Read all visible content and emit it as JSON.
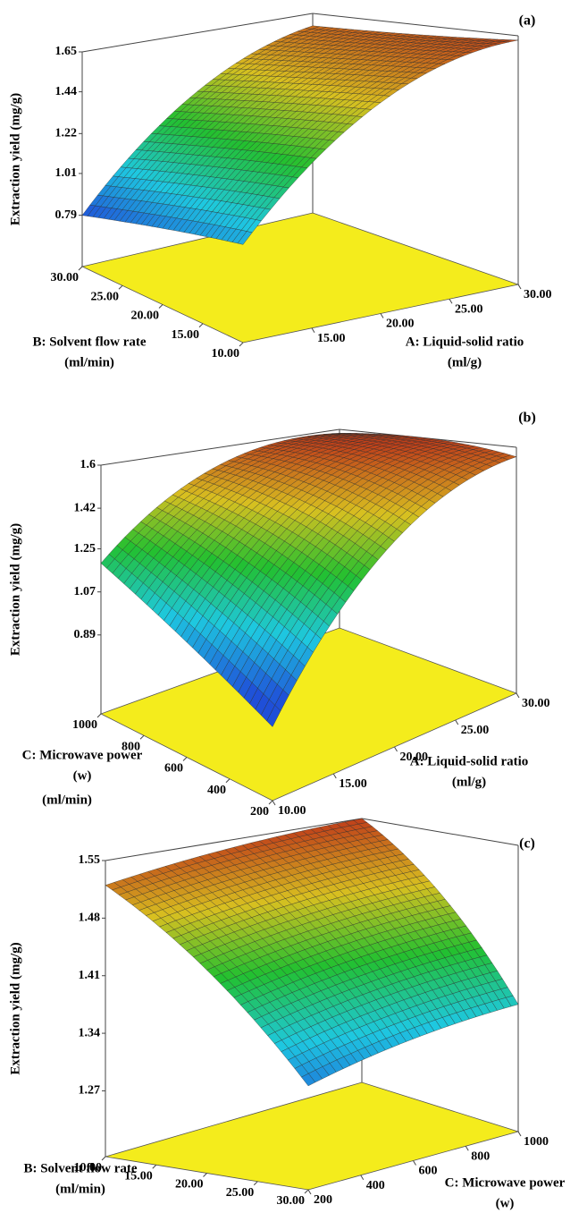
{
  "chart_data": [
    {
      "type": "surface",
      "label": "(a)",
      "zlabel": "Extraction yield (mg/g)",
      "zlim": [
        0.52,
        1.65
      ],
      "zticks": [
        0.79,
        1.01,
        1.22,
        1.44,
        1.65
      ],
      "xlabel": [
        "A: Liquid-solid ratio",
        "(ml/g)"
      ],
      "xlim": [
        10,
        30
      ],
      "xticks": [
        {
          "value": 15,
          "label": "15.00"
        },
        {
          "value": 20,
          "label": "20.00"
        },
        {
          "value": 25,
          "label": "25.00"
        },
        {
          "value": 30,
          "label": "30.00"
        }
      ],
      "ylabel": [
        "B: Solvent flow rate",
        "(ml/min)"
      ],
      "ylim": [
        10,
        30
      ],
      "yticks": [
        {
          "value": 30,
          "label": "30.00"
        },
        {
          "value": 25,
          "label": "25.00"
        },
        {
          "value": 20,
          "label": "20.00"
        },
        {
          "value": 15,
          "label": "15.00"
        },
        {
          "value": 10,
          "label": "10.00"
        }
      ],
      "x": [
        10,
        20,
        30
      ],
      "y": [
        10,
        20,
        30
      ],
      "z": [
        [
          0.94,
          1.45,
          1.63
        ],
        [
          0.88,
          1.4,
          1.6
        ],
        [
          0.79,
          1.33,
          1.58
        ]
      ]
    },
    {
      "type": "surface",
      "label": "(b)",
      "zlabel": "Extraction yield (mg/g)",
      "zlim": [
        0.56,
        1.6
      ],
      "zticks": [
        0.89,
        1.07,
        1.25,
        1.42,
        1.6
      ],
      "xlabel": [
        "A: Liquid-solid ratio",
        "(ml/g)"
      ],
      "xlim": [
        10,
        30
      ],
      "xticks": [
        {
          "value": 10,
          "label": "10.00"
        },
        {
          "value": 15,
          "label": "15.00"
        },
        {
          "value": 20,
          "label": "20.00"
        },
        {
          "value": 25,
          "label": "25.00"
        },
        {
          "value": 30,
          "label": "30.00"
        }
      ],
      "ylabel": [
        "C: Microwave power",
        "(w)"
      ],
      "ylim": [
        200,
        1000
      ],
      "yticks": [
        1000,
        800,
        600,
        400,
        200
      ],
      "x": [
        10,
        20,
        30
      ],
      "y": [
        200,
        600,
        1000
      ],
      "z": [
        [
          0.82,
          1.35,
          1.56
        ],
        [
          1.0,
          1.47,
          1.6
        ],
        [
          1.19,
          1.52,
          1.58
        ]
      ],
      "annotation": "(ml/min)"
    },
    {
      "type": "surface",
      "label": "(c)",
      "zlabel": "Extraction yield (mg/g)",
      "zlim": [
        1.19,
        1.55
      ],
      "zticks": [
        1.27,
        1.34,
        1.41,
        1.48,
        1.55
      ],
      "xlabel": [
        "C: Microwave power",
        "(w)"
      ],
      "xlim": [
        200,
        1000
      ],
      "xticks": [
        200,
        400,
        600,
        800,
        1000
      ],
      "ylabel": [
        "B: Solvent flow rate",
        "(ml/min)"
      ],
      "ylim": [
        30,
        10
      ],
      "yticks": [
        {
          "value": 10,
          "label": "10.00"
        },
        {
          "value": 15,
          "label": "15.00"
        },
        {
          "value": 20,
          "label": "20.00"
        },
        {
          "value": 25,
          "label": "25.00"
        },
        {
          "value": 30,
          "label": "30.00"
        }
      ],
      "x": [
        200,
        600,
        1000
      ],
      "y": [
        10,
        20,
        30
      ],
      "z": [
        [
          1.52,
          1.54,
          1.55
        ],
        [
          1.42,
          1.45,
          1.47
        ],
        [
          1.3,
          1.33,
          1.35
        ]
      ]
    }
  ]
}
